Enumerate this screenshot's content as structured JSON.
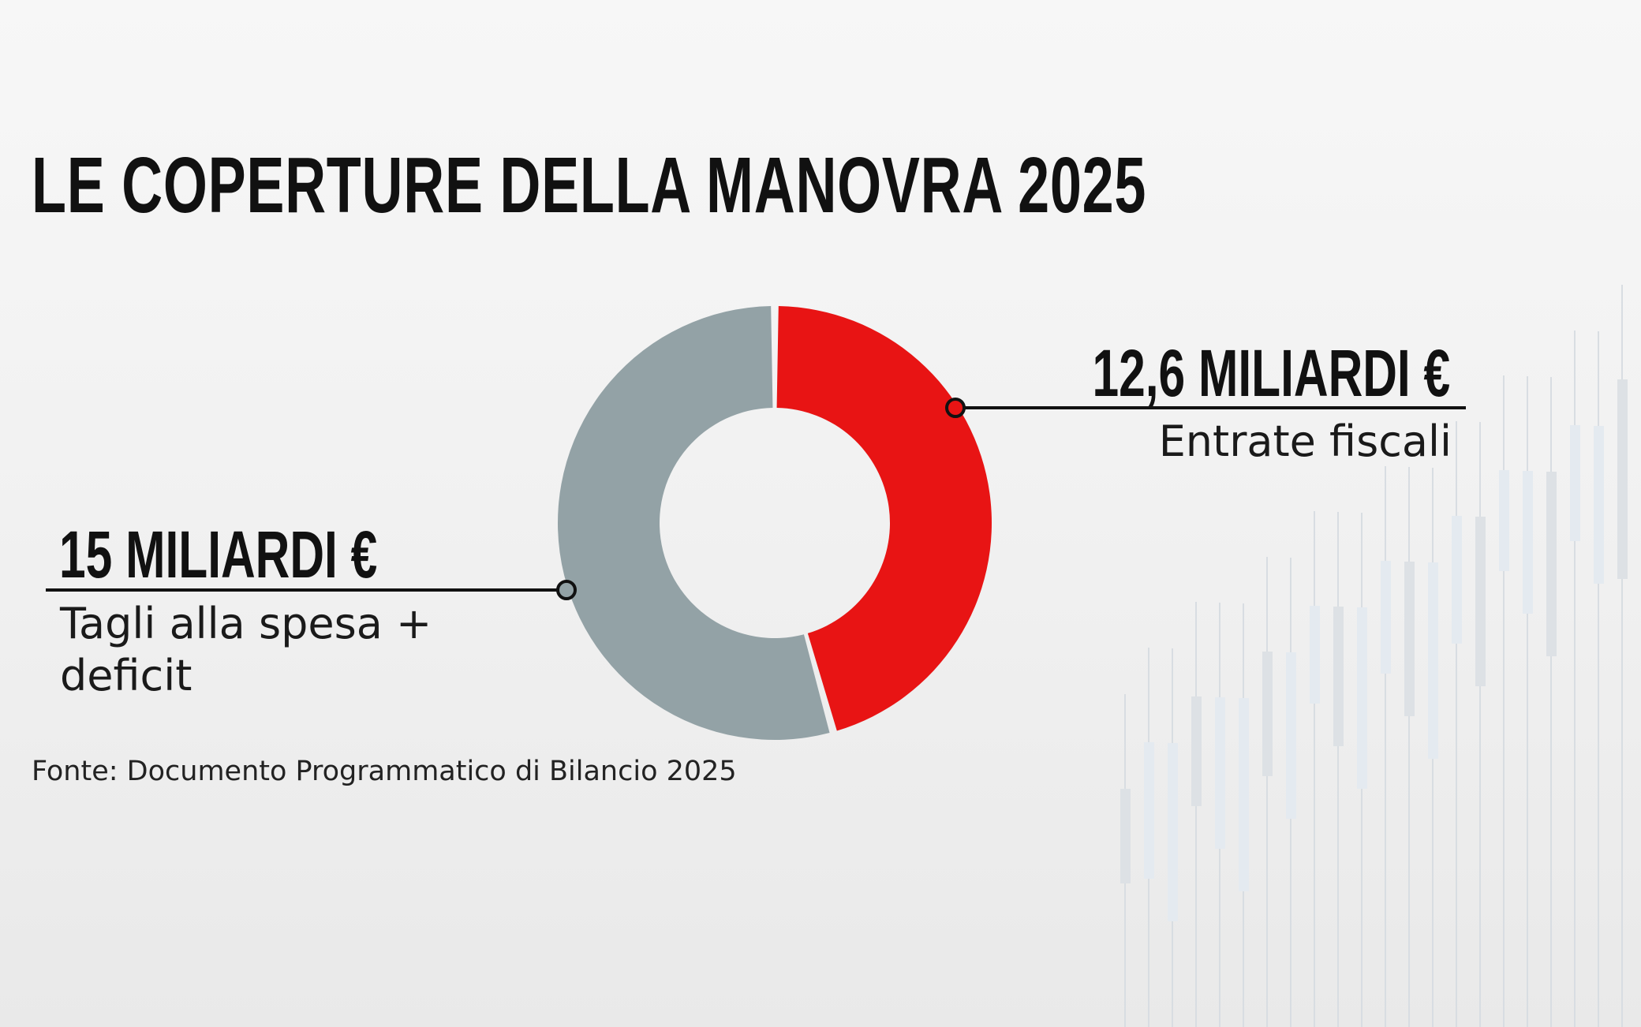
{
  "title": "LE COPERTURE DELLA MANOVRA 2025",
  "chart_data": {
    "type": "pie",
    "variant": "donut",
    "title": "LE COPERTURE DELLA MANOVRA 2025",
    "slices": [
      {
        "label": "Entrate fiscali",
        "value": 12.6,
        "value_label": "12,6 MILIARDI €",
        "color": "#e81414"
      },
      {
        "label": "Tagli alla spesa + deficit",
        "value": 15,
        "value_label": "15 MILIARDI €",
        "color": "#93a2a6"
      }
    ],
    "unit": "miliardi €"
  },
  "labels": {
    "red_value": "12,6 MILIARDI €",
    "red_desc": "Entrate fiscali",
    "grey_value": "15 MILIARDI €",
    "grey_desc_line1": "Tagli alla spesa +",
    "grey_desc_line2": "deficit"
  },
  "source": "Fonte: Documento Programmatico di Bilancio 2025"
}
